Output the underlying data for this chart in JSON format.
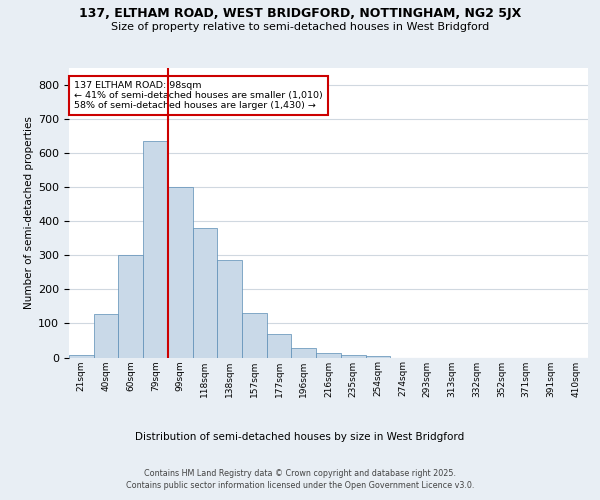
{
  "title1": "137, ELTHAM ROAD, WEST BRIDGFORD, NOTTINGHAM, NG2 5JX",
  "title2": "Size of property relative to semi-detached houses in West Bridgford",
  "xlabel": "Distribution of semi-detached houses by size in West Bridgford",
  "ylabel": "Number of semi-detached properties",
  "footer1": "Contains HM Land Registry data © Crown copyright and database right 2025.",
  "footer2": "Contains public sector information licensed under the Open Government Licence v3.0.",
  "bin_labels": [
    "21sqm",
    "40sqm",
    "60sqm",
    "79sqm",
    "99sqm",
    "118sqm",
    "138sqm",
    "157sqm",
    "177sqm",
    "196sqm",
    "216sqm",
    "235sqm",
    "254sqm",
    "274sqm",
    "293sqm",
    "313sqm",
    "332sqm",
    "352sqm",
    "371sqm",
    "391sqm",
    "410sqm"
  ],
  "bar_heights": [
    8,
    128,
    300,
    635,
    500,
    380,
    285,
    130,
    70,
    27,
    13,
    8,
    5,
    0,
    0,
    0,
    0,
    0,
    0,
    0,
    0
  ],
  "bar_color": "#c9d9e8",
  "bar_edge_color": "#5a8db5",
  "property_label": "137 ELTHAM ROAD: 98sqm",
  "pct_smaller": 41,
  "pct_larger": 58,
  "count_smaller": 1010,
  "count_larger": 1430,
  "vline_color": "#cc0000",
  "annotation_box_edge_color": "#cc0000",
  "ylim": [
    0,
    850
  ],
  "yticks": [
    0,
    100,
    200,
    300,
    400,
    500,
    600,
    700,
    800
  ],
  "grid_color": "#d0d8e0",
  "bg_color": "#e8eef4",
  "plot_bg_color": "#ffffff"
}
